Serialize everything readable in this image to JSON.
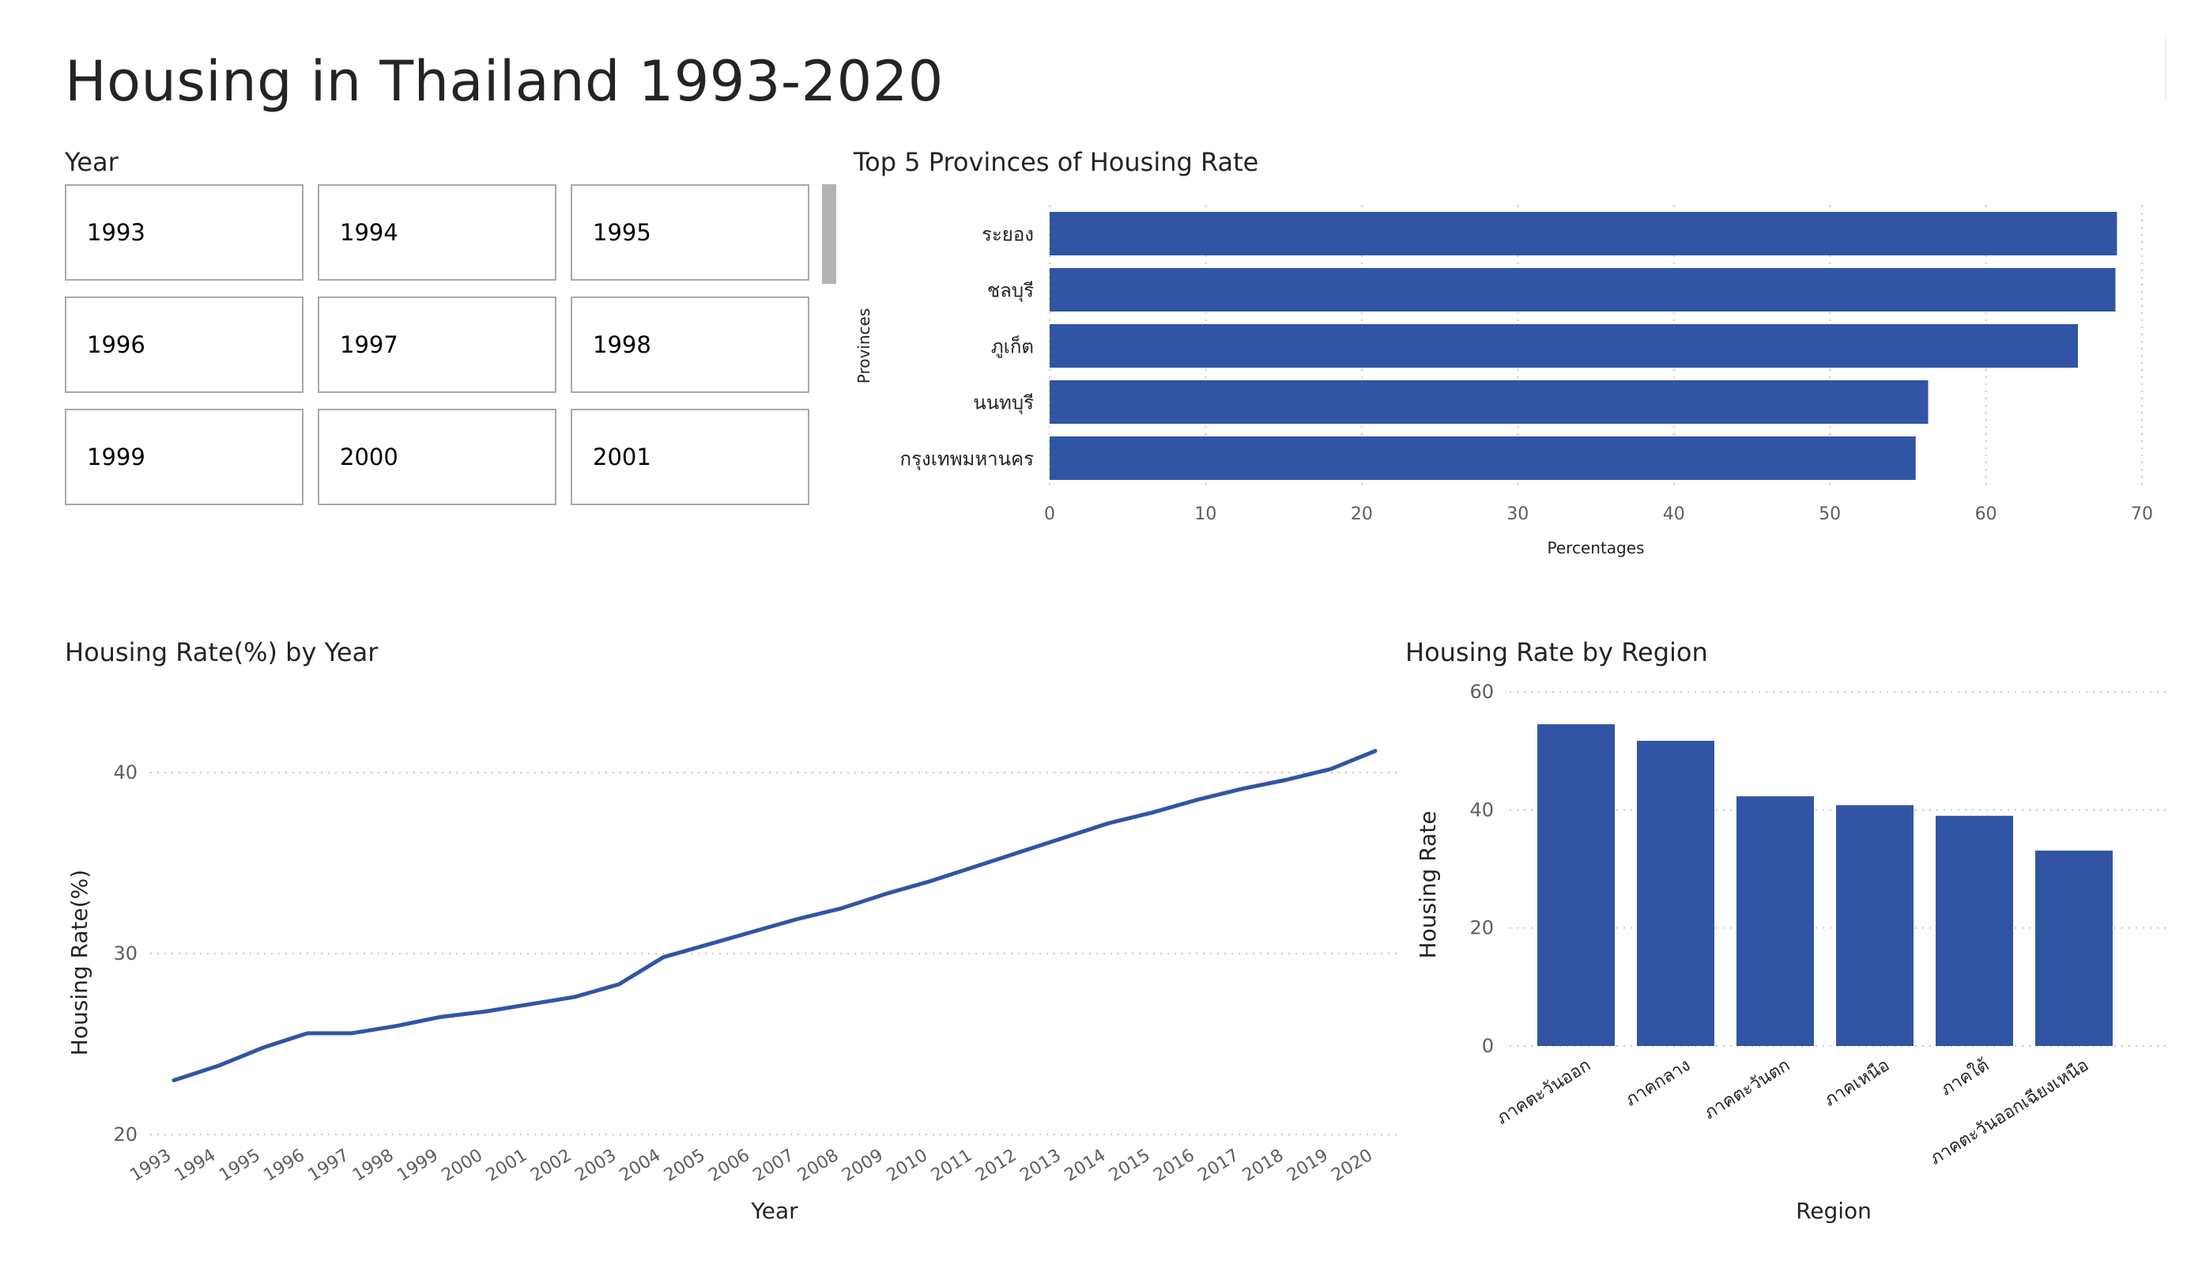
{
  "page": {
    "title": "Housing in Thailand 1993-2020"
  },
  "slicer": {
    "title": "Year",
    "years": [
      "1993",
      "1994",
      "1995",
      "1996",
      "1997",
      "1998",
      "1999",
      "2000",
      "2001"
    ]
  },
  "colors": {
    "bar": "#3155A4",
    "line": "#3155A4",
    "grid": "#c8c8c8",
    "tick": "#605E5C"
  },
  "chart_data": [
    {
      "id": "provinces",
      "type": "bar",
      "orientation": "horizontal",
      "title": "Top 5 Provinces of Housing Rate",
      "xlabel": "Percentages",
      "ylabel": "Provinces",
      "categories": [
        "ระยอง",
        "ชลบุรี",
        "ภูเก็ต",
        "นนทบุรี",
        "กรุงเทพมหานคร"
      ],
      "values": [
        68.4,
        68.3,
        65.9,
        56.3,
        55.5
      ],
      "xlim": [
        0,
        70
      ],
      "xticks": [
        0,
        10,
        20,
        30,
        40,
        50,
        60,
        70
      ],
      "grid": true
    },
    {
      "id": "year",
      "type": "line",
      "title": "Housing Rate(%) by Year",
      "xlabel": "Year",
      "ylabel": "Housing Rate(%)",
      "x": [
        "1993",
        "1994",
        "1995",
        "1996",
        "1997",
        "1998",
        "1999",
        "2000",
        "2001",
        "2002",
        "2003",
        "2004",
        "2005",
        "2006",
        "2007",
        "2008",
        "2009",
        "2010",
        "2011",
        "2012",
        "2013",
        "2014",
        "2015",
        "2016",
        "2017",
        "2018",
        "2019",
        "2020"
      ],
      "values": [
        23.0,
        23.8,
        24.8,
        25.6,
        25.6,
        26.0,
        26.5,
        26.8,
        27.2,
        27.6,
        28.3,
        29.8,
        30.5,
        31.2,
        31.9,
        32.5,
        33.3,
        34.0,
        34.8,
        35.6,
        36.4,
        37.2,
        37.8,
        38.5,
        39.1,
        39.6,
        40.2,
        41.2
      ],
      "ylim": [
        20,
        42.5
      ],
      "yticks": [
        20,
        30,
        40
      ],
      "grid": true
    },
    {
      "id": "region",
      "type": "bar",
      "orientation": "vertical",
      "title": "Housing Rate by Region",
      "xlabel": "Region",
      "ylabel": "Housing Rate",
      "categories": [
        "ภาคตะวันออก",
        "ภาคกลาง",
        "ภาคตะวันตก",
        "ภาคเหนือ",
        "ภาคใต้",
        "ภาคตะวันออกเฉียงเหนือ"
      ],
      "values": [
        54.5,
        51.7,
        42.3,
        40.8,
        39.0,
        33.1
      ],
      "ylim": [
        0,
        60
      ],
      "yticks": [
        0,
        20,
        40,
        60
      ],
      "grid": true
    }
  ]
}
